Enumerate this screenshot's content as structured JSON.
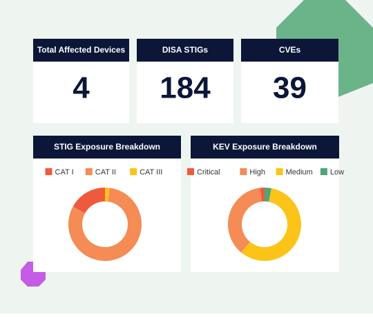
{
  "cards": [
    {
      "title": "Total Affected Devices",
      "value": 4
    },
    {
      "title": "DISA STIGs",
      "value": 184
    },
    {
      "title": "CVEs",
      "value": 39
    }
  ],
  "chart_data": [
    {
      "type": "pie",
      "title": "STIG Exposure Breakdown",
      "donut": true,
      "categories": [
        "CAT I",
        "CAT II",
        "CAT III"
      ],
      "values": [
        17,
        81,
        2
      ],
      "colors": [
        "#f05a3c",
        "#f58b55",
        "#fcc419"
      ]
    },
    {
      "type": "pie",
      "title": "KEV Exposure Breakdown",
      "donut": true,
      "categories": [
        "Critical",
        "High",
        "Medium",
        "Low"
      ],
      "values": [
        2,
        37,
        58,
        3
      ],
      "colors": [
        "#f05a3c",
        "#f58b55",
        "#fcc419",
        "#4fa57a"
      ]
    }
  ]
}
